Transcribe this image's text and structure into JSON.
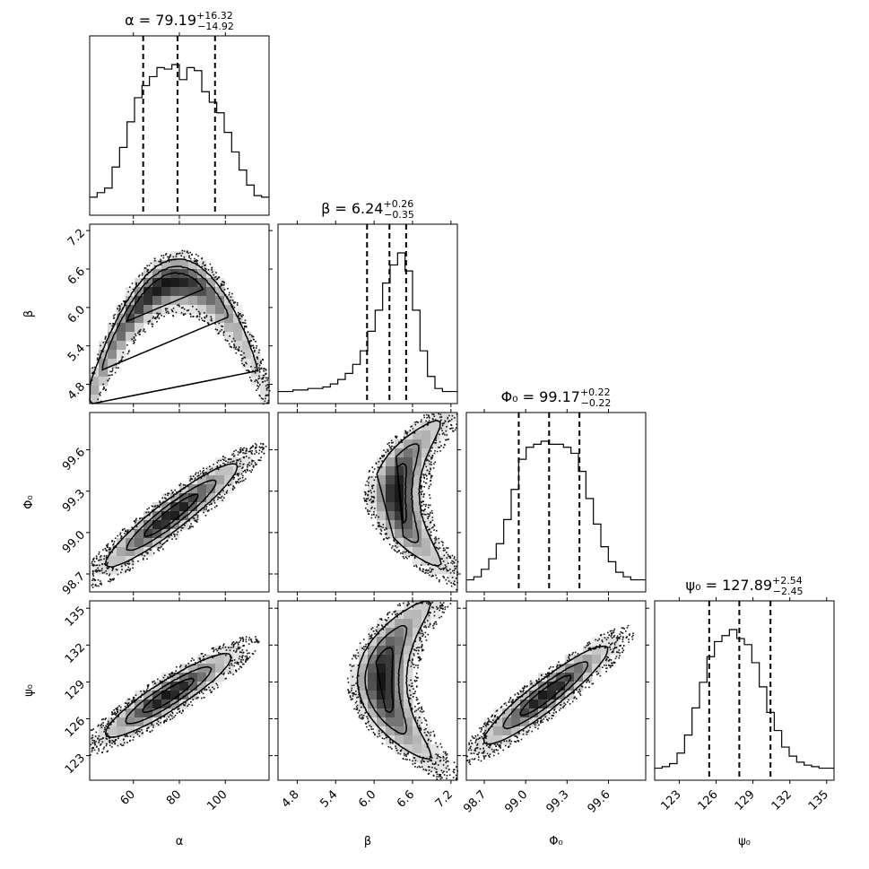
{
  "chart_data": {
    "type": "corner",
    "parameters": [
      {
        "key": "alpha",
        "label": "α",
        "title_main": "α = 79.19",
        "title_plus": "+16.32",
        "title_minus": "−14.92",
        "median": 79.19,
        "err_plus": 16.32,
        "err_minus": 14.92,
        "range": [
          41.0,
          119.0
        ],
        "ticks": [
          60,
          80,
          100
        ],
        "tick_labels": [
          "60",
          "80",
          "100"
        ],
        "hist": [
          0.12,
          0.15,
          0.18,
          0.32,
          0.45,
          0.62,
          0.78,
          0.86,
          0.92,
          0.98,
          0.97,
          1.0,
          0.9,
          0.98,
          0.96,
          0.82,
          0.75,
          0.68,
          0.55,
          0.42,
          0.3,
          0.2,
          0.13,
          0.12
        ]
      },
      {
        "key": "beta",
        "label": "β",
        "title_main": "β = 6.24",
        "title_plus": "+0.26",
        "title_minus": "−0.35",
        "median": 6.24,
        "err_plus": 0.26,
        "err_minus": 0.35,
        "range": [
          4.5,
          7.3
        ],
        "ticks": [
          4.8,
          5.4,
          6.0,
          6.6,
          7.2
        ],
        "tick_labels": [
          "4.8",
          "5.4",
          "6.0",
          "6.6",
          "7.2"
        ],
        "hist": [
          0.08,
          0.08,
          0.09,
          0.09,
          0.1,
          0.1,
          0.11,
          0.13,
          0.16,
          0.2,
          0.26,
          0.35,
          0.48,
          0.62,
          0.8,
          0.92,
          1.0,
          0.88,
          0.62,
          0.35,
          0.18,
          0.1,
          0.08,
          0.08
        ]
      },
      {
        "key": "phi0",
        "label": "Φ₀",
        "title_main": "Φ₀ = 99.17",
        "title_plus": "+0.22",
        "title_minus": "−0.22",
        "median": 99.17,
        "err_plus": 0.22,
        "err_minus": 0.22,
        "range": [
          98.57,
          99.87
        ],
        "ticks": [
          98.7,
          99.0,
          99.3,
          99.6
        ],
        "tick_labels": [
          "98.7",
          "99.0",
          "99.3",
          "99.6"
        ],
        "hist": [
          0.08,
          0.1,
          0.15,
          0.22,
          0.32,
          0.48,
          0.68,
          0.88,
          0.96,
          0.98,
          1.0,
          0.98,
          0.98,
          0.96,
          0.92,
          0.8,
          0.62,
          0.45,
          0.3,
          0.2,
          0.13,
          0.1,
          0.08,
          0.08
        ]
      },
      {
        "key": "psi0",
        "label": "ψ₀",
        "title_main": "ψ₀ = 127.89",
        "title_plus": "+2.54",
        "title_minus": "−2.45",
        "median": 127.89,
        "err_plus": 2.54,
        "err_minus": 2.45,
        "range": [
          121.0,
          135.6
        ],
        "ticks": [
          123,
          126,
          129,
          132,
          135
        ],
        "tick_labels": [
          "123",
          "126",
          "129",
          "132",
          "135"
        ],
        "hist": [
          0.08,
          0.09,
          0.11,
          0.18,
          0.3,
          0.48,
          0.65,
          0.82,
          0.92,
          0.96,
          1.0,
          0.94,
          0.9,
          0.78,
          0.62,
          0.45,
          0.33,
          0.22,
          0.16,
          0.12,
          0.1,
          0.09,
          0.08,
          0.08
        ]
      }
    ],
    "pairs": [
      {
        "x": "alpha",
        "y": "beta",
        "shape": "arc",
        "peak": [
          70,
          6.35
        ],
        "contours": 3
      },
      {
        "x": "alpha",
        "y": "phi0",
        "shape": "linear",
        "from": [
          45,
          98.72
        ],
        "to": [
          115,
          99.62
        ],
        "contours": 3
      },
      {
        "x": "beta",
        "y": "phi0",
        "shape": "crescent-left",
        "peak": [
          6.35,
          99.22
        ],
        "contours": 3
      },
      {
        "x": "alpha",
        "y": "psi0",
        "shape": "linear",
        "from": [
          45,
          124.3
        ],
        "to": [
          112,
          132.3
        ],
        "contours": 3
      },
      {
        "x": "beta",
        "y": "psi0",
        "shape": "crescent-down",
        "peak": [
          6.35,
          129.5
        ],
        "contours": 3
      },
      {
        "x": "phi0",
        "y": "psi0",
        "shape": "linear",
        "from": [
          98.65,
          123.6
        ],
        "to": [
          99.75,
          133.2
        ],
        "contours": 3
      }
    ]
  }
}
